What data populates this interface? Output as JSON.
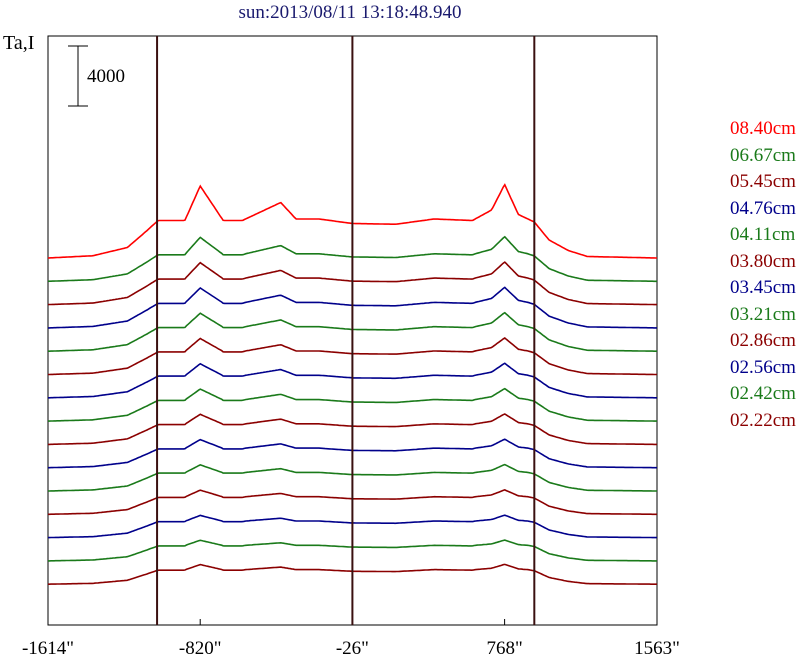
{
  "title": "sun:2013/08/11 13:18:48.940",
  "chart_data": {
    "type": "line",
    "ylabel": "Ta,I",
    "scale_bar_label": "4000",
    "scale_bar_value": 4000,
    "xlabel": "",
    "xlim": [
      -1614,
      1563
    ],
    "xticks": [
      "-1614\"",
      "-820\"",
      "-26\"",
      "768\"",
      "1563\""
    ],
    "xtick_values": [
      -1614,
      -820,
      -26,
      768,
      1563
    ],
    "vertical_lines": [
      -1045,
      -26,
      923
    ],
    "legend_position": "right",
    "series": [
      {
        "name": "08.40cm",
        "color": "#ff0000",
        "offset": 0,
        "x": [
          -1614,
          -1380,
          -1200,
          -1100,
          -1040,
          -960,
          -900,
          -820,
          -700,
          -600,
          -400,
          -320,
          -200,
          -26,
          200,
          400,
          600,
          700,
          768,
          840,
          923,
          1000,
          1100,
          1200,
          1563
        ],
        "y": [
          0,
          150,
          700,
          1800,
          2500,
          2500,
          2500,
          4800,
          2500,
          2500,
          3700,
          2600,
          2600,
          2300,
          2250,
          2600,
          2500,
          3200,
          4900,
          2900,
          2400,
          1200,
          500,
          100,
          0
        ]
      },
      {
        "name": "06.67cm",
        "color": "#1a7a1a",
        "offset": 1
      },
      {
        "name": "05.45cm",
        "color": "#8b0000",
        "offset": 2
      },
      {
        "name": "04.76cm",
        "color": "#00008b",
        "offset": 3
      },
      {
        "name": "04.11cm",
        "color": "#1a7a1a",
        "offset": 4
      },
      {
        "name": "03.80cm",
        "color": "#8b0000",
        "offset": 5
      },
      {
        "name": "03.45cm",
        "color": "#00008b",
        "offset": 6
      },
      {
        "name": "03.21cm",
        "color": "#1a7a1a",
        "offset": 7
      },
      {
        "name": "02.86cm",
        "color": "#8b0000",
        "offset": 8
      },
      {
        "name": "02.56cm",
        "color": "#00008b",
        "offset": 9
      },
      {
        "name": "02.42cm",
        "color": "#1a7a1a",
        "offset": 10
      },
      {
        "name": "02.22cm",
        "color": "#8b0000",
        "offset": 11
      }
    ],
    "extra_trace_colors": [
      "#00008b",
      "#1a7a1a",
      "#8b0000"
    ]
  }
}
